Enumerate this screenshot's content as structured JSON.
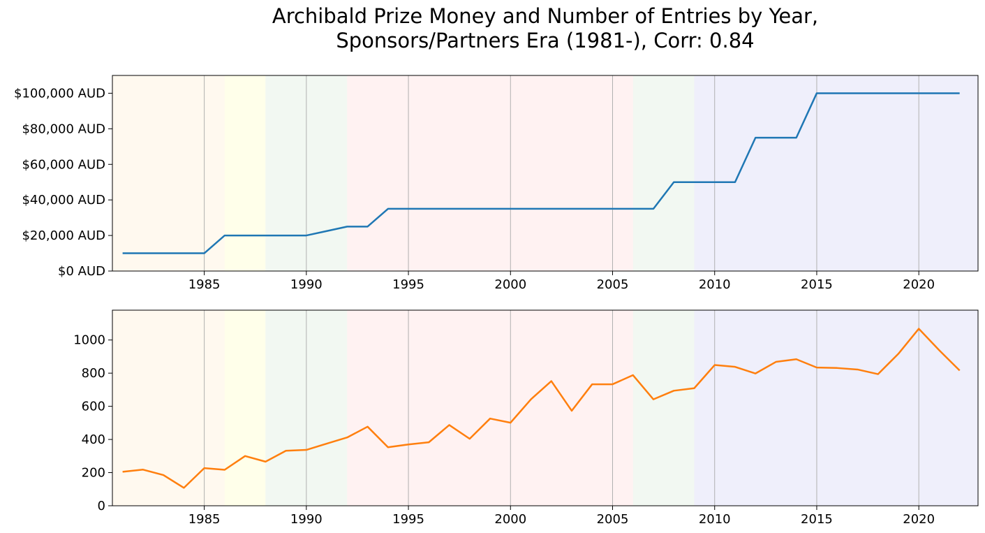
{
  "chart_data": {
    "type": "line",
    "title_line1": "Archibald Prize Money and Number of Entries by Year,",
    "title_line2": "Sponsors/Partners Era (1981-), Corr: 0.84",
    "shaded_periods": [
      {
        "start": 1980.5,
        "end": 1986,
        "color": "#fff3e0"
      },
      {
        "start": 1986,
        "end": 1988,
        "color": "#ffffd6"
      },
      {
        "start": 1988,
        "end": 1992,
        "color": "#e6f2e6"
      },
      {
        "start": 1992,
        "end": 2006,
        "color": "#ffe6e6"
      },
      {
        "start": 2006,
        "end": 2009,
        "color": "#e6f2e6"
      },
      {
        "start": 2009,
        "end": 2022.9,
        "color": "#e0e0f8"
      }
    ],
    "xlim": [
      1980.5,
      2022.9
    ],
    "x_ticks": [
      1985,
      1990,
      1995,
      2000,
      2005,
      2010,
      2015,
      2020
    ],
    "vertical_gridlines": true,
    "panels": [
      {
        "name": "prize",
        "color": "#1f77b4",
        "ylim": [
          0,
          110000
        ],
        "y_ticks": [
          {
            "value": 0,
            "label": "$0 AUD"
          },
          {
            "value": 20000,
            "label": "$20,000 AUD"
          },
          {
            "value": 40000,
            "label": "$40,000 AUD"
          },
          {
            "value": 60000,
            "label": "$60,000 AUD"
          },
          {
            "value": 80000,
            "label": "$80,000 AUD"
          },
          {
            "value": 100000,
            "label": "$100,000 AUD"
          }
        ],
        "x": [
          1981,
          1982,
          1983,
          1984,
          1985,
          1986,
          1987,
          1988,
          1989,
          1990,
          1991,
          1992,
          1993,
          1994,
          1995,
          1996,
          1997,
          1998,
          1999,
          2000,
          2001,
          2002,
          2003,
          2004,
          2005,
          2006,
          2007,
          2008,
          2009,
          2010,
          2011,
          2012,
          2013,
          2014,
          2015,
          2016,
          2017,
          2018,
          2019,
          2020,
          2021,
          2022
        ],
        "values": [
          10000,
          10000,
          10000,
          10000,
          10000,
          20000,
          20000,
          20000,
          20000,
          20000,
          22500,
          25000,
          25000,
          35000,
          35000,
          35000,
          35000,
          35000,
          35000,
          35000,
          35000,
          35000,
          35000,
          35000,
          35000,
          35000,
          35000,
          50000,
          50000,
          50000,
          50000,
          75000,
          75000,
          75000,
          100000,
          100000,
          100000,
          100000,
          100000,
          100000,
          100000,
          100000
        ]
      },
      {
        "name": "entries",
        "color": "#ff7f0e",
        "ylim": [
          0,
          1180
        ],
        "y_ticks": [
          {
            "value": 0,
            "label": "0"
          },
          {
            "value": 200,
            "label": "200"
          },
          {
            "value": 400,
            "label": "400"
          },
          {
            "value": 600,
            "label": "600"
          },
          {
            "value": 800,
            "label": "800"
          },
          {
            "value": 1000,
            "label": "1000"
          }
        ],
        "x": [
          1981,
          1982,
          1983,
          1984,
          1985,
          1986,
          1987,
          1988,
          1989,
          1990,
          1991,
          1992,
          1993,
          1994,
          1995,
          1996,
          1997,
          1998,
          1999,
          2000,
          2001,
          2002,
          2003,
          2004,
          2005,
          2006,
          2007,
          2008,
          2009,
          2010,
          2011,
          2012,
          2013,
          2014,
          2015,
          2016,
          2017,
          2018,
          2019,
          2020,
          2021,
          2022
        ],
        "values": [
          205,
          218,
          185,
          108,
          227,
          217,
          300,
          266,
          332,
          337,
          375,
          412,
          477,
          353,
          370,
          383,
          487,
          404,
          526,
          501,
          642,
          752,
          573,
          733,
          733,
          788,
          642,
          694,
          709,
          849,
          838,
          798,
          868,
          884,
          834,
          831,
          822,
          794,
          917,
          1068,
          938,
          816
        ]
      }
    ]
  }
}
